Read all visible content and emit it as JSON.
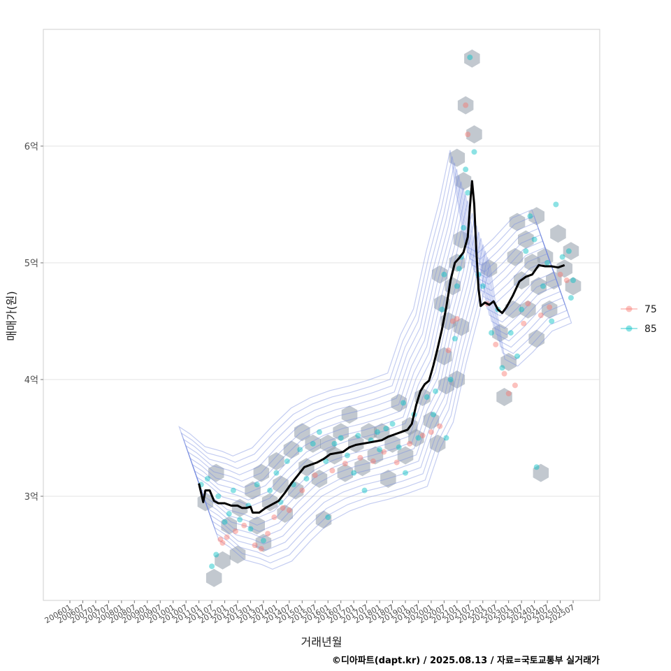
{
  "chart_data": {
    "type": "scatter",
    "xlabel": "거래년월",
    "ylabel": "매매가(원)",
    "caption": "©디아파트(dapt.kr) / 2025.08.13 / 자료=국토교통부 실거래가",
    "x_tick_labels": [
      "200601",
      "200607",
      "200701",
      "200707",
      "200801",
      "200807",
      "200901",
      "200907",
      "201001",
      "201007",
      "201101",
      "201107",
      "201201",
      "201207",
      "201301",
      "201307",
      "201401",
      "201407",
      "201501",
      "201507",
      "201601",
      "201607",
      "201701",
      "201707",
      "201801",
      "201807",
      "201901",
      "201907",
      "202001",
      "202007",
      "202101",
      "202107",
      "202201",
      "202207",
      "202301",
      "202307",
      "202401",
      "202407",
      "202501",
      "202507"
    ],
    "x_range": [
      "2006-01",
      "2025-12"
    ],
    "y_ticks": [
      3,
      4,
      5,
      6
    ],
    "y_tick_labels": [
      "3억",
      "4억",
      "5억",
      "6억"
    ],
    "y_unit": "억",
    "y_range": [
      2.1,
      7.0
    ],
    "grid": "horizontal major",
    "legend_position": "right",
    "legend": [
      {
        "label": "75",
        "color": "#F8766D"
      },
      {
        "label": "85",
        "color": "#00BFC4"
      }
    ],
    "hexbin_color": "#8f9aa8",
    "density_color": "#7b8fe0",
    "trend_color": "#000000",
    "trend": [
      [
        "2011-01",
        3.11
      ],
      [
        "2011-03",
        2.95
      ],
      [
        "2011-04",
        3.05
      ],
      [
        "2011-06",
        3.05
      ],
      [
        "2011-08",
        2.96
      ],
      [
        "2011-10",
        2.94
      ],
      [
        "2012-01",
        2.94
      ],
      [
        "2012-04",
        2.92
      ],
      [
        "2012-07",
        2.92
      ],
      [
        "2012-09",
        2.9
      ],
      [
        "2012-11",
        2.9
      ],
      [
        "2013-01",
        2.91
      ],
      [
        "2013-02",
        2.86
      ],
      [
        "2013-05",
        2.86
      ],
      [
        "2013-08",
        2.9
      ],
      [
        "2013-11",
        2.93
      ],
      [
        "2014-02",
        2.96
      ],
      [
        "2014-05",
        3.03
      ],
      [
        "2014-08",
        3.11
      ],
      [
        "2014-11",
        3.18
      ],
      [
        "2015-02",
        3.25
      ],
      [
        "2015-05",
        3.27
      ],
      [
        "2015-08",
        3.29
      ],
      [
        "2015-11",
        3.32
      ],
      [
        "2016-02",
        3.36
      ],
      [
        "2016-05",
        3.37
      ],
      [
        "2016-08",
        3.38
      ],
      [
        "2016-11",
        3.42
      ],
      [
        "2017-02",
        3.44
      ],
      [
        "2017-05",
        3.45
      ],
      [
        "2017-08",
        3.46
      ],
      [
        "2017-11",
        3.47
      ],
      [
        "2018-02",
        3.48
      ],
      [
        "2018-05",
        3.51
      ],
      [
        "2018-08",
        3.53
      ],
      [
        "2018-11",
        3.55
      ],
      [
        "2019-02",
        3.57
      ],
      [
        "2019-04",
        3.62
      ],
      [
        "2019-06",
        3.78
      ],
      [
        "2019-08",
        3.9
      ],
      [
        "2019-10",
        3.96
      ],
      [
        "2019-12",
        3.99
      ],
      [
        "2020-02",
        4.12
      ],
      [
        "2020-04",
        4.27
      ],
      [
        "2020-06",
        4.43
      ],
      [
        "2020-08",
        4.62
      ],
      [
        "2020-10",
        4.85
      ],
      [
        "2020-12",
        5.0
      ],
      [
        "2021-02",
        5.04
      ],
      [
        "2021-04",
        5.09
      ],
      [
        "2021-06",
        5.22
      ],
      [
        "2021-07",
        5.48
      ],
      [
        "2021-08",
        5.7
      ],
      [
        "2021-09",
        5.5
      ],
      [
        "2021-10",
        5.1
      ],
      [
        "2021-11",
        4.78
      ],
      [
        "2021-12",
        4.63
      ],
      [
        "2022-02",
        4.66
      ],
      [
        "2022-04",
        4.64
      ],
      [
        "2022-06",
        4.67
      ],
      [
        "2022-08",
        4.6
      ],
      [
        "2022-10",
        4.57
      ],
      [
        "2022-12",
        4.62
      ],
      [
        "2023-03",
        4.72
      ],
      [
        "2023-06",
        4.84
      ],
      [
        "2023-09",
        4.88
      ],
      [
        "2023-12",
        4.9
      ],
      [
        "2024-03",
        4.98
      ],
      [
        "2024-06",
        4.97
      ],
      [
        "2024-09",
        4.97
      ],
      [
        "2024-12",
        4.96
      ],
      [
        "2025-03",
        4.98
      ]
    ],
    "series": [
      {
        "name": "75",
        "points": [
          [
            "2011-11",
            2.63
          ],
          [
            "2011-12",
            2.6
          ],
          [
            "2012-02",
            2.65
          ],
          [
            "2012-06",
            2.7
          ],
          [
            "2012-10",
            2.75
          ],
          [
            "2013-03",
            2.58
          ],
          [
            "2013-06",
            2.55
          ],
          [
            "2013-09",
            2.68
          ],
          [
            "2013-12",
            2.82
          ],
          [
            "2014-04",
            2.9
          ],
          [
            "2014-07",
            2.88
          ],
          [
            "2015-01",
            3.05
          ],
          [
            "2015-07",
            3.18
          ],
          [
            "2016-03",
            3.22
          ],
          [
            "2016-09",
            3.28
          ],
          [
            "2017-04",
            3.33
          ],
          [
            "2017-10",
            3.3
          ],
          [
            "2018-03",
            3.38
          ],
          [
            "2018-09",
            3.29
          ],
          [
            "2019-03",
            3.45
          ],
          [
            "2019-09",
            3.52
          ],
          [
            "2020-01",
            3.55
          ],
          [
            "2020-05",
            3.6
          ],
          [
            "2020-09",
            4.25
          ],
          [
            "2020-11",
            4.5
          ],
          [
            "2021-01",
            4.52
          ],
          [
            "2021-05",
            6.35
          ],
          [
            "2021-06",
            6.1
          ],
          [
            "2022-03",
            4.65
          ],
          [
            "2022-07",
            4.3
          ],
          [
            "2022-11",
            4.05
          ],
          [
            "2023-01",
            3.88
          ],
          [
            "2023-04",
            3.95
          ],
          [
            "2023-08",
            4.48
          ],
          [
            "2023-10",
            4.65
          ],
          [
            "2024-04",
            4.55
          ],
          [
            "2024-08",
            4.62
          ],
          [
            "2025-01",
            4.9
          ],
          [
            "2025-04",
            4.85
          ]
        ]
      },
      {
        "name": "85",
        "points": [
          [
            "2011-02",
            3.1
          ],
          [
            "2011-05",
            3.15
          ],
          [
            "2011-07",
            2.4
          ],
          [
            "2011-09",
            2.5
          ],
          [
            "2011-10",
            3.0
          ],
          [
            "2012-01",
            2.78
          ],
          [
            "2012-03",
            2.85
          ],
          [
            "2012-05",
            3.05
          ],
          [
            "2012-08",
            2.8
          ],
          [
            "2012-12",
            2.92
          ],
          [
            "2013-01",
            2.72
          ],
          [
            "2013-04",
            3.1
          ],
          [
            "2013-07",
            2.62
          ],
          [
            "2013-10",
            3.05
          ],
          [
            "2014-01",
            3.2
          ],
          [
            "2014-03",
            2.95
          ],
          [
            "2014-06",
            3.3
          ],
          [
            "2014-09",
            3.1
          ],
          [
            "2014-12",
            3.4
          ],
          [
            "2015-03",
            3.15
          ],
          [
            "2015-06",
            3.45
          ],
          [
            "2015-09",
            3.55
          ],
          [
            "2015-12",
            3.3
          ],
          [
            "2016-01",
            2.82
          ],
          [
            "2016-04",
            3.45
          ],
          [
            "2016-07",
            3.5
          ],
          [
            "2016-10",
            3.35
          ],
          [
            "2017-01",
            3.2
          ],
          [
            "2017-03",
            3.52
          ],
          [
            "2017-06",
            3.05
          ],
          [
            "2017-09",
            3.48
          ],
          [
            "2017-12",
            3.55
          ],
          [
            "2018-01",
            3.4
          ],
          [
            "2018-04",
            3.58
          ],
          [
            "2018-07",
            3.62
          ],
          [
            "2018-10",
            3.42
          ],
          [
            "2018-12",
            3.8
          ],
          [
            "2019-01",
            3.2
          ],
          [
            "2019-05",
            3.7
          ],
          [
            "2019-07",
            3.5
          ],
          [
            "2019-11",
            3.85
          ],
          [
            "2020-02",
            3.7
          ],
          [
            "2020-03",
            3.9
          ],
          [
            "2020-06",
            4.6
          ],
          [
            "2020-07",
            4.9
          ],
          [
            "2020-08",
            3.5
          ],
          [
            "2020-10",
            4.0
          ],
          [
            "2020-12",
            4.35
          ],
          [
            "2021-01",
            4.8
          ],
          [
            "2021-02",
            4.95
          ],
          [
            "2021-03",
            5.05
          ],
          [
            "2021-04",
            5.3
          ],
          [
            "2021-05",
            5.8
          ],
          [
            "2021-06",
            5.6
          ],
          [
            "2021-07",
            6.76
          ],
          [
            "2021-09",
            5.95
          ],
          [
            "2021-11",
            4.9
          ],
          [
            "2022-01",
            4.8
          ],
          [
            "2022-05",
            4.4
          ],
          [
            "2022-08",
            4.6
          ],
          [
            "2022-10",
            4.1
          ],
          [
            "2023-02",
            4.4
          ],
          [
            "2023-05",
            4.2
          ],
          [
            "2023-07",
            4.6
          ],
          [
            "2023-09",
            5.1
          ],
          [
            "2023-11",
            5.4
          ],
          [
            "2024-01",
            5.2
          ],
          [
            "2024-02",
            3.25
          ],
          [
            "2024-05",
            4.8
          ],
          [
            "2024-07",
            5.0
          ],
          [
            "2024-09",
            4.5
          ],
          [
            "2024-11",
            5.5
          ],
          [
            "2025-02",
            5.05
          ],
          [
            "2025-05",
            5.1
          ],
          [
            "2025-06",
            4.7
          ],
          [
            "2025-07",
            4.85
          ]
        ]
      }
    ],
    "hexbins": [
      [
        "2011-04",
        2.95
      ],
      [
        "2011-09",
        3.2
      ],
      [
        "2011-08",
        2.3
      ],
      [
        "2011-12",
        2.45
      ],
      [
        "2012-03",
        2.75
      ],
      [
        "2012-07",
        2.5
      ],
      [
        "2012-08",
        2.9
      ],
      [
        "2013-02",
        3.05
      ],
      [
        "2013-04",
        2.75
      ],
      [
        "2013-06",
        3.2
      ],
      [
        "2013-07",
        2.6
      ],
      [
        "2013-10",
        2.95
      ],
      [
        "2014-01",
        3.3
      ],
      [
        "2014-03",
        3.1
      ],
      [
        "2014-05",
        2.85
      ],
      [
        "2014-08",
        3.4
      ],
      [
        "2014-10",
        3.05
      ],
      [
        "2015-01",
        3.55
      ],
      [
        "2015-03",
        3.25
      ],
      [
        "2015-06",
        3.45
      ],
      [
        "2015-09",
        3.15
      ],
      [
        "2015-11",
        2.8
      ],
      [
        "2016-01",
        3.45
      ],
      [
        "2016-04",
        3.35
      ],
      [
        "2016-07",
        3.55
      ],
      [
        "2016-09",
        3.2
      ],
      [
        "2016-11",
        3.7
      ],
      [
        "2017-02",
        3.45
      ],
      [
        "2017-05",
        3.25
      ],
      [
        "2017-08",
        3.55
      ],
      [
        "2017-11",
        3.35
      ],
      [
        "2018-02",
        3.55
      ],
      [
        "2018-05",
        3.15
      ],
      [
        "2018-07",
        3.45
      ],
      [
        "2018-10",
        3.8
      ],
      [
        "2019-01",
        3.35
      ],
      [
        "2019-03",
        3.6
      ],
      [
        "2019-06",
        3.5
      ],
      [
        "2019-09",
        3.85
      ],
      [
        "2020-01",
        3.65
      ],
      [
        "2020-04",
        3.45
      ],
      [
        "2020-05",
        4.9
      ],
      [
        "2020-06",
        4.65
      ],
      [
        "2020-07",
        4.2
      ],
      [
        "2020-08",
        3.95
      ],
      [
        "2020-09",
        4.5
      ],
      [
        "2020-11",
        4.8
      ],
      [
        "2021-01",
        5.0
      ],
      [
        "2021-01",
        5.9
      ],
      [
        "2021-01",
        4.0
      ],
      [
        "2021-03",
        5.2
      ],
      [
        "2021-03",
        4.45
      ],
      [
        "2021-04",
        5.7
      ],
      [
        "2021-05",
        6.35
      ],
      [
        "2021-08",
        6.75
      ],
      [
        "2021-09",
        6.1
      ],
      [
        "2022-04",
        4.95
      ],
      [
        "2022-09",
        4.4
      ],
      [
        "2022-11",
        3.85
      ],
      [
        "2023-01",
        4.15
      ],
      [
        "2023-03",
        4.6
      ],
      [
        "2023-04",
        5.05
      ],
      [
        "2023-05",
        5.35
      ],
      [
        "2023-07",
        4.85
      ],
      [
        "2023-09",
        5.2
      ],
      [
        "2023-10",
        4.6
      ],
      [
        "2023-12",
        5.0
      ],
      [
        "2024-02",
        5.4
      ],
      [
        "2024-02",
        4.35
      ],
      [
        "2024-03",
        4.8
      ],
      [
        "2024-04",
        3.2
      ],
      [
        "2024-06",
        5.05
      ],
      [
        "2024-08",
        4.6
      ],
      [
        "2024-10",
        4.85
      ],
      [
        "2024-12",
        5.25
      ],
      [
        "2025-03",
        4.95
      ],
      [
        "2025-06",
        5.1
      ],
      [
        "2025-07",
        4.8
      ]
    ]
  }
}
